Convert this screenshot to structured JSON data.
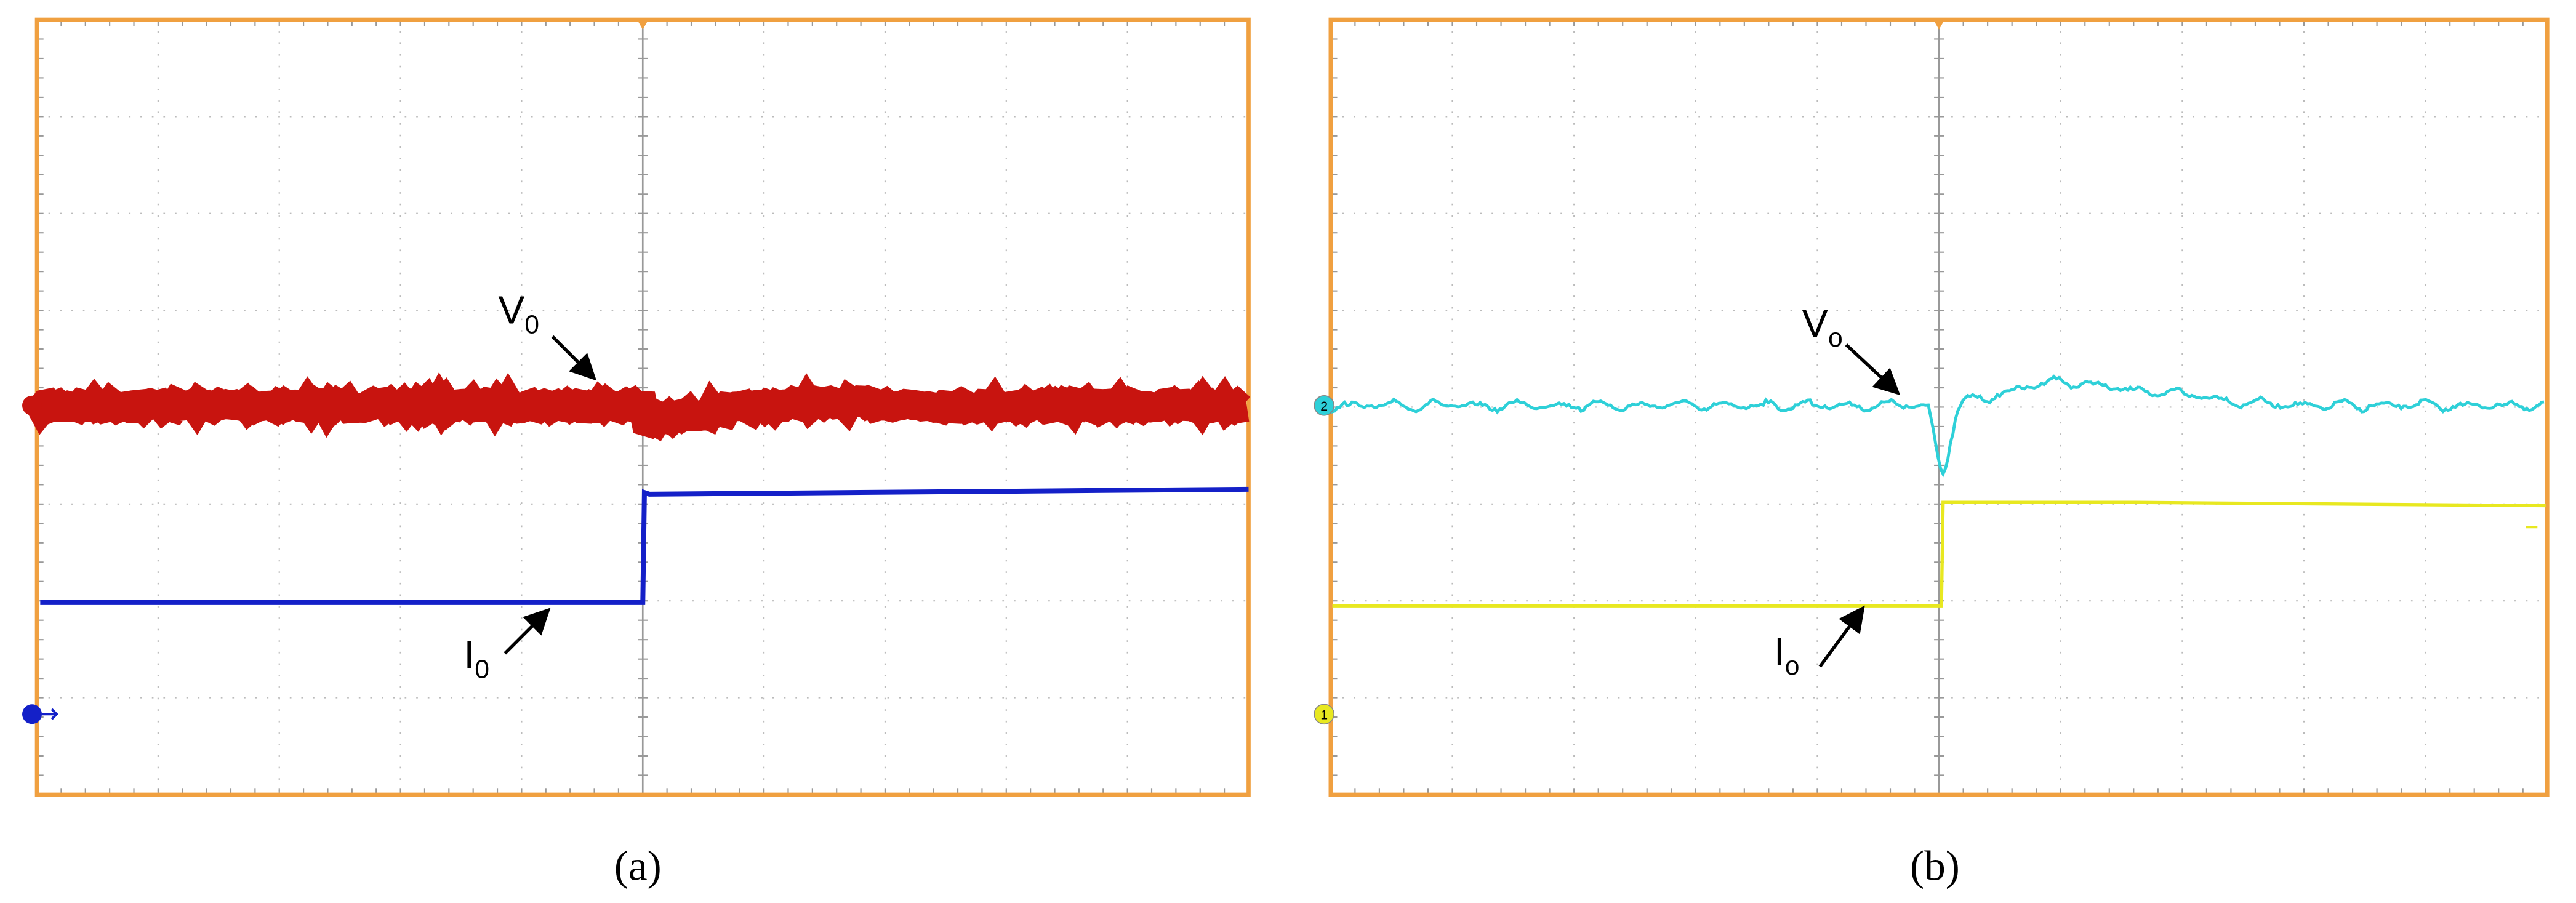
{
  "panels": [
    {
      "caption": "(a)",
      "voltage_label": {
        "main": "V",
        "sub": "0"
      },
      "current_label": {
        "main": "I",
        "sub": "0"
      }
    },
    {
      "caption": "(b)",
      "voltage_label": {
        "main": "V",
        "sub": "o"
      },
      "current_label": {
        "main": "I",
        "sub": "o"
      },
      "channel_markers": [
        "2",
        "1"
      ]
    }
  ]
}
